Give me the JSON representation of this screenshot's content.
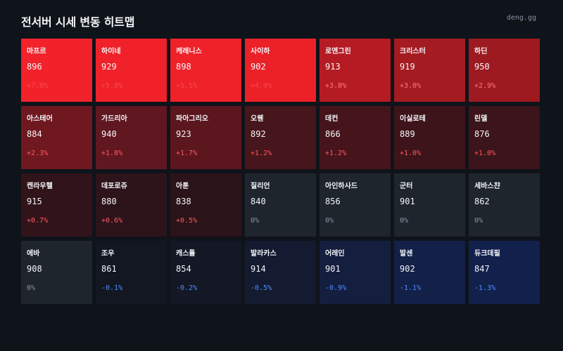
{
  "header": {
    "title": "전서버 시세 변동 히트맵",
    "brand": "deng.gg"
  },
  "cells": [
    {
      "name": "마프르",
      "price": "896",
      "change": "+7.8%",
      "bg": "#f2222b",
      "tone": "up strong"
    },
    {
      "name": "하이네",
      "price": "929",
      "change": "+5.8%",
      "bg": "#f02129",
      "tone": "up strong"
    },
    {
      "name": "케레니스",
      "price": "898",
      "change": "+5.5%",
      "bg": "#ef2129",
      "tone": "up strong"
    },
    {
      "name": "사이하",
      "price": "902",
      "change": "+4.9%",
      "bg": "#ec2128",
      "tone": "up strong"
    },
    {
      "name": "로엔그린",
      "price": "913",
      "change": "+3.8%",
      "bg": "#b51b23",
      "tone": "up med"
    },
    {
      "name": "크리스터",
      "price": "919",
      "change": "+3.0%",
      "bg": "#a41b22",
      "tone": "up med"
    },
    {
      "name": "하딘",
      "price": "950",
      "change": "+2.9%",
      "bg": "#9e1a21",
      "tone": "up med"
    },
    {
      "name": "아스테어",
      "price": "884",
      "change": "+2.3%",
      "bg": "#701820",
      "tone": "up"
    },
    {
      "name": "가드리아",
      "price": "940",
      "change": "+1.8%",
      "bg": "#611720",
      "tone": "up"
    },
    {
      "name": "파아그리오",
      "price": "923",
      "change": "+1.7%",
      "bg": "#5c161e",
      "tone": "up"
    },
    {
      "name": "오웬",
      "price": "892",
      "change": "+1.2%",
      "bg": "#47151c",
      "tone": "up"
    },
    {
      "name": "데컨",
      "price": "866",
      "change": "+1.2%",
      "bg": "#46151c",
      "tone": "up"
    },
    {
      "name": "이실로테",
      "price": "889",
      "change": "+1.0%",
      "bg": "#3e141b",
      "tone": "up"
    },
    {
      "name": "린델",
      "price": "876",
      "change": "+1.0%",
      "bg": "#3c141b",
      "tone": "up"
    },
    {
      "name": "켄라우헬",
      "price": "915",
      "change": "+0.7%",
      "bg": "#31131a",
      "tone": "up"
    },
    {
      "name": "데포로쥬",
      "price": "880",
      "change": "+0.6%",
      "bg": "#2d131a",
      "tone": "up"
    },
    {
      "name": "아툰",
      "price": "838",
      "change": "+0.5%",
      "bg": "#2a1319",
      "tone": "up"
    },
    {
      "name": "질리언",
      "price": "840",
      "change": "0%",
      "bg": "#1f252d",
      "tone": "flat"
    },
    {
      "name": "아인하사드",
      "price": "856",
      "change": "0%",
      "bg": "#1f252d",
      "tone": "flat"
    },
    {
      "name": "군터",
      "price": "901",
      "change": "0%",
      "bg": "#1f252d",
      "tone": "flat"
    },
    {
      "name": "세바스챤",
      "price": "862",
      "change": "0%",
      "bg": "#1f252d",
      "tone": "flat"
    },
    {
      "name": "에바",
      "price": "908",
      "change": "0%",
      "bg": "#1f252d",
      "tone": "flat"
    },
    {
      "name": "조우",
      "price": "861",
      "change": "-0.1%",
      "bg": "#131722",
      "tone": "down"
    },
    {
      "name": "캐스톨",
      "price": "854",
      "change": "-0.2%",
      "bg": "#131824",
      "tone": "down"
    },
    {
      "name": "발라카스",
      "price": "914",
      "change": "-0.5%",
      "bg": "#141b30",
      "tone": "down"
    },
    {
      "name": "어레인",
      "price": "901",
      "change": "-0.9%",
      "bg": "#141e3f",
      "tone": "down"
    },
    {
      "name": "발센",
      "price": "902",
      "change": "-1.1%",
      "bg": "#132047",
      "tone": "down"
    },
    {
      "name": "듀크데필",
      "price": "847",
      "change": "-1.3%",
      "bg": "#12214c",
      "tone": "down"
    }
  ]
}
